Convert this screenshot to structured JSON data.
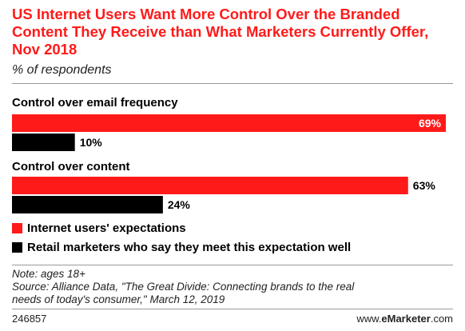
{
  "title": "US Internet Users Want More Control Over the Branded Content They Receive than What Marketers Currently Offer, Nov 2018",
  "subtitle": "% of respondents",
  "colors": {
    "title": "#ff1a1a",
    "series1": "#ff1a1a",
    "series2": "#000000"
  },
  "chart_data": {
    "type": "bar",
    "orientation": "horizontal",
    "categories": [
      "Control over email frequency",
      "Control over content"
    ],
    "series": [
      {
        "name": "Internet users' expectations",
        "values": [
          69,
          63
        ],
        "labels": [
          "69%",
          "63%"
        ],
        "color": "#ff1a1a"
      },
      {
        "name": "Retail marketers who say they meet this expectation well",
        "values": [
          10,
          24
        ],
        "labels": [
          "10%",
          "24%"
        ],
        "color": "#000000"
      }
    ],
    "xlim": [
      0,
      69
    ],
    "grid": false,
    "legend_position": "bottom-left"
  },
  "legend": [
    {
      "label": "Internet users' expectations"
    },
    {
      "label": "Retail marketers who say they meet this expectation well"
    }
  ],
  "notes": {
    "note": "Note: ages 18+",
    "source_line1": "Source: Alliance Data, \"The Great Divide: Connecting brands to the real",
    "source_line2": "needs of today's consumer,\" March 12, 2019"
  },
  "footer": {
    "chart_id": "246857",
    "brand_prefix": "www.",
    "brand_name": "eMarketer",
    "brand_suffix": ".com"
  }
}
